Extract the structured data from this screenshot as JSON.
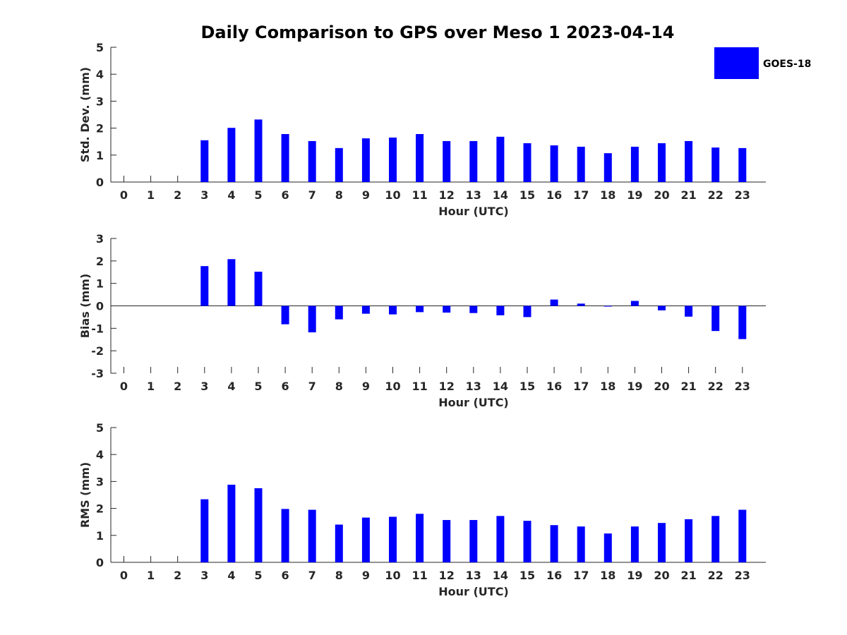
{
  "title": "Daily Comparison to GPS over Meso 1 2023-04-14",
  "legend": {
    "label": "GOES-18",
    "color": "#0000FF",
    "placement": "top-right"
  },
  "chart_data": [
    {
      "type": "bar",
      "categories": [
        "0",
        "1",
        "2",
        "3",
        "4",
        "5",
        "6",
        "7",
        "8",
        "9",
        "10",
        "11",
        "12",
        "13",
        "14",
        "15",
        "16",
        "17",
        "18",
        "19",
        "20",
        "21",
        "22",
        "23"
      ],
      "series": [
        {
          "name": "GOES-18",
          "values": [
            null,
            null,
            null,
            1.55,
            2.01,
            2.32,
            1.78,
            1.52,
            1.26,
            1.62,
            1.65,
            1.78,
            1.52,
            1.52,
            1.68,
            1.44,
            1.36,
            1.31,
            1.07,
            1.31,
            1.44,
            1.52,
            1.28,
            1.26
          ]
        }
      ],
      "xlabel": "Hour (UTC)",
      "ylabel": "Std. Dev. (mm)",
      "ylim": [
        0,
        5
      ],
      "yticks": [
        "0",
        "1",
        "2",
        "3",
        "4",
        "5"
      ],
      "grid": false
    },
    {
      "type": "bar",
      "categories": [
        "0",
        "1",
        "2",
        "3",
        "4",
        "5",
        "6",
        "7",
        "8",
        "9",
        "10",
        "11",
        "12",
        "13",
        "14",
        "15",
        "16",
        "17",
        "18",
        "19",
        "20",
        "21",
        "22",
        "23"
      ],
      "series": [
        {
          "name": "GOES-18",
          "values": [
            null,
            null,
            null,
            1.77,
            2.08,
            1.52,
            -0.82,
            -1.18,
            -0.6,
            -0.35,
            -0.38,
            -0.28,
            -0.3,
            -0.32,
            -0.42,
            -0.5,
            0.28,
            0.1,
            -0.03,
            0.22,
            -0.2,
            -0.48,
            -1.12,
            -1.48
          ]
        }
      ],
      "xlabel": "Hour (UTC)",
      "ylabel": "Bias (mm)",
      "ylim": [
        -3,
        3
      ],
      "yticks": [
        "-3",
        "-2",
        "-1",
        "0",
        "1",
        "2",
        "3"
      ],
      "grid": false
    },
    {
      "type": "bar",
      "categories": [
        "0",
        "1",
        "2",
        "3",
        "4",
        "5",
        "6",
        "7",
        "8",
        "9",
        "10",
        "11",
        "12",
        "13",
        "14",
        "15",
        "16",
        "17",
        "18",
        "19",
        "20",
        "21",
        "22",
        "23"
      ],
      "series": [
        {
          "name": "GOES-18",
          "values": [
            null,
            null,
            null,
            2.34,
            2.88,
            2.75,
            1.98,
            1.95,
            1.4,
            1.66,
            1.69,
            1.8,
            1.57,
            1.57,
            1.72,
            1.54,
            1.38,
            1.33,
            1.07,
            1.33,
            1.46,
            1.6,
            1.72,
            1.95
          ]
        }
      ],
      "xlabel": "Hour (UTC)",
      "ylabel": "RMS (mm)",
      "ylim": [
        0,
        5
      ],
      "yticks": [
        "0",
        "1",
        "2",
        "3",
        "4",
        "5"
      ],
      "grid": false
    }
  ]
}
